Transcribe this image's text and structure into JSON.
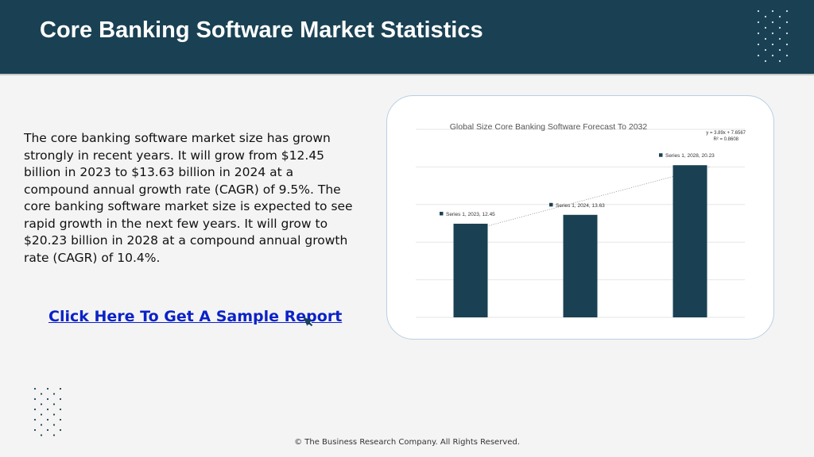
{
  "header": {
    "title": "Core Banking Software Market Statistics"
  },
  "body": {
    "paragraph": "The core banking software market size has grown strongly in recent years. It will grow from $12.45 billion in 2023 to $13.63 billion in 2024 at a compound annual growth rate (CAGR) of 9.5%. The core banking software market size is expected to see rapid growth in the next few years. It will grow to $20.23 billion in 2028 at a compound annual growth rate (CAGR) of 10.4%."
  },
  "cta": {
    "label": "Click Here To Get A Sample Report"
  },
  "footer": {
    "text": "© The Business Research Company. All Rights Reserved."
  },
  "icons": {
    "cursor": "cursor-arrow-icon",
    "decor": "dot-grid-icon"
  },
  "colors": {
    "header_bg": "#1a4153",
    "bar": "#1a4153",
    "link": "#0b22c8",
    "card_border": "#b9cfe4"
  },
  "chart_data": {
    "type": "bar",
    "title": "Global Size Core Banking Software Forecast To 2032",
    "categories": [
      "2023",
      "2024",
      "2028"
    ],
    "series": [
      {
        "name": "Series 1",
        "values": [
          12.45,
          13.63,
          20.23
        ]
      }
    ],
    "data_labels": [
      "Series 1, 2023, 12.45",
      "Series 1, 2024, 13.63",
      "Series 1, 2028, 20.23"
    ],
    "trendline": {
      "equation": "y = 3.89x + 7.6567",
      "r_squared": "R² = 0.8608",
      "style": "dotted"
    },
    "ylim": [
      0,
      25
    ],
    "grid": true,
    "xlabel": "",
    "ylabel": ""
  }
}
